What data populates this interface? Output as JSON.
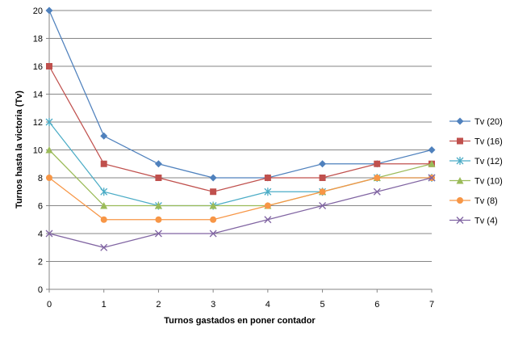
{
  "chart_data": {
    "type": "line",
    "title": "",
    "xlabel": "Turnos gastados  en poner contador",
    "ylabel": "Turnos hasta la victoria (Tv)",
    "x": [
      0,
      1,
      2,
      3,
      4,
      5,
      6,
      7
    ],
    "xlim": [
      0,
      7
    ],
    "ylim": [
      0,
      20
    ],
    "yticks": [
      0,
      2,
      4,
      6,
      8,
      10,
      12,
      14,
      16,
      18,
      20
    ],
    "grid": "horizontal",
    "legend_position": "right",
    "series": [
      {
        "name": "Tv (20)",
        "values": [
          20,
          11,
          9,
          8,
          8,
          9,
          9,
          10
        ],
        "color": "#4f81bd",
        "marker": "diamond"
      },
      {
        "name": "Tv (16)",
        "values": [
          16,
          9,
          8,
          7,
          8,
          8,
          9,
          9
        ],
        "color": "#c0504d",
        "marker": "square"
      },
      {
        "name": "Tv (12)",
        "values": [
          12,
          7,
          6,
          6,
          7,
          7,
          8,
          8
        ],
        "color": "#4bacc6",
        "marker": "star"
      },
      {
        "name": "Tv (10)",
        "values": [
          10,
          6,
          6,
          6,
          6,
          7,
          8,
          9
        ],
        "color": "#9bbb59",
        "marker": "triangle"
      },
      {
        "name": "Tv (8)",
        "values": [
          8,
          5,
          5,
          5,
          6,
          7,
          8,
          8
        ],
        "color": "#f79646",
        "marker": "circle"
      },
      {
        "name": "Tv (4)",
        "values": [
          4,
          3,
          4,
          4,
          5,
          6,
          7,
          8
        ],
        "color": "#8064a2",
        "marker": "x"
      }
    ]
  }
}
